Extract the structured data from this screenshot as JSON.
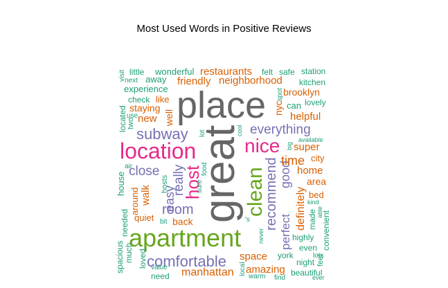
{
  "chart_data": {
    "type": "wordcloud",
    "title": "Most Used Words in Positive Reviews",
    "palette": {
      "c1": "#1b9e77",
      "c2": "#d95f02",
      "c3": "#7570b3",
      "c4": "#e7298a",
      "c5": "#66a61e",
      "c6": "#666666"
    },
    "words": [
      {
        "text": "great",
        "size_rank": 1,
        "color": "#666666"
      },
      {
        "text": "place",
        "size_rank": 2,
        "color": "#666666"
      },
      {
        "text": "apartment",
        "size_rank": 3,
        "color": "#66a61e"
      },
      {
        "text": "location",
        "size_rank": 4,
        "color": "#e7298a"
      },
      {
        "text": "clean",
        "size_rank": 5,
        "color": "#66a61e"
      },
      {
        "text": "nice",
        "size_rank": 6,
        "color": "#e7298a"
      },
      {
        "text": "host",
        "size_rank": 7,
        "color": "#e7298a"
      },
      {
        "text": "comfortable",
        "size_rank": 8,
        "color": "#7570b3"
      },
      {
        "text": "subway",
        "size_rank": 9,
        "color": "#7570b3"
      },
      {
        "text": "recommend",
        "size_rank": 10,
        "color": "#7570b3"
      },
      {
        "text": "room",
        "size_rank": 11,
        "color": "#7570b3"
      },
      {
        "text": "everything",
        "size_rank": 12,
        "color": "#7570b3"
      },
      {
        "text": "really",
        "size_rank": 13,
        "color": "#7570b3"
      },
      {
        "text": "close",
        "size_rank": 14,
        "color": "#7570b3"
      },
      {
        "text": "easy",
        "size_rank": 15,
        "color": "#7570b3"
      },
      {
        "text": "good",
        "size_rank": 16,
        "color": "#7570b3"
      },
      {
        "text": "perfect",
        "size_rank": 17,
        "color": "#7570b3"
      },
      {
        "text": "time",
        "size_rank": 18,
        "color": "#d95f02"
      },
      {
        "text": "definitely",
        "size_rank": 19,
        "color": "#d95f02"
      },
      {
        "text": "neighborhood",
        "size_rank": 20,
        "color": "#d95f02"
      },
      {
        "text": "restaurants",
        "size_rank": 21,
        "color": "#d95f02"
      },
      {
        "text": "manhattan",
        "size_rank": 22,
        "color": "#d95f02"
      },
      {
        "text": "super",
        "size_rank": 23,
        "color": "#d95f02"
      },
      {
        "text": "home",
        "size_rank": 24,
        "color": "#d95f02"
      },
      {
        "text": "helpful",
        "size_rank": 25,
        "color": "#d95f02"
      },
      {
        "text": "space",
        "size_rank": 26,
        "color": "#d95f02"
      },
      {
        "text": "amazing",
        "size_rank": 27,
        "color": "#d95f02"
      },
      {
        "text": "friendly",
        "size_rank": 28,
        "color": "#d95f02"
      },
      {
        "text": "brooklyn",
        "size_rank": 29,
        "color": "#d95f02"
      },
      {
        "text": "walk",
        "size_rank": 30,
        "color": "#d95f02"
      },
      {
        "text": "well",
        "size_rank": 31,
        "color": "#d95f02"
      },
      {
        "text": "new",
        "size_rank": 32,
        "color": "#d95f02"
      },
      {
        "text": "nyc",
        "size_rank": 33,
        "color": "#d95f02"
      },
      {
        "text": "area",
        "size_rank": 34,
        "color": "#d95f02"
      },
      {
        "text": "staying",
        "size_rank": 35,
        "color": "#d95f02"
      },
      {
        "text": "back",
        "size_rank": 36,
        "color": "#d95f02"
      },
      {
        "text": "quiet",
        "size_rank": 37,
        "color": "#d95f02"
      },
      {
        "text": "around",
        "size_rank": 38,
        "color": "#d95f02"
      },
      {
        "text": "city",
        "size_rank": 39,
        "color": "#d95f02"
      },
      {
        "text": "bed",
        "size_rank": 40,
        "color": "#d95f02"
      },
      {
        "text": "like",
        "size_rank": 41,
        "color": "#d95f02"
      },
      {
        "text": "wonderful",
        "size_rank": 42,
        "color": "#1b9e77"
      },
      {
        "text": "experience",
        "size_rank": 43,
        "color": "#1b9e77"
      },
      {
        "text": "away",
        "size_rank": 44,
        "color": "#1b9e77"
      },
      {
        "text": "little",
        "size_rank": 45,
        "color": "#1b9e77"
      },
      {
        "text": "felt",
        "size_rank": 46,
        "color": "#1b9e77"
      },
      {
        "text": "safe",
        "size_rank": 47,
        "color": "#1b9e77"
      },
      {
        "text": "station",
        "size_rank": 48,
        "color": "#1b9e77"
      },
      {
        "text": "kitchen",
        "size_rank": 49,
        "color": "#1b9e77"
      },
      {
        "text": "lovely",
        "size_rank": 50,
        "color": "#1b9e77"
      },
      {
        "text": "can",
        "size_rank": 51,
        "color": "#1b9e77"
      },
      {
        "text": "check",
        "size_rank": 52,
        "color": "#1b9e77"
      },
      {
        "text": "located",
        "size_rank": 53,
        "color": "#1b9e77"
      },
      {
        "text": "two",
        "size_rank": 54,
        "color": "#1b9e77"
      },
      {
        "text": "house",
        "size_rank": 55,
        "color": "#1b9e77"
      },
      {
        "text": "needed",
        "size_rank": 56,
        "color": "#1b9e77"
      },
      {
        "text": "much",
        "size_rank": 57,
        "color": "#1b9e77"
      },
      {
        "text": "spacious",
        "size_rank": 58,
        "color": "#1b9e77"
      },
      {
        "text": "loved",
        "size_rank": 59,
        "color": "#1b9e77"
      },
      {
        "text": "highly",
        "size_rank": 60,
        "color": "#1b9e77"
      },
      {
        "text": "even",
        "size_rank": 61,
        "color": "#1b9e77"
      },
      {
        "text": "night",
        "size_rank": 62,
        "color": "#1b9e77"
      },
      {
        "text": "york",
        "size_rank": 63,
        "color": "#1b9e77"
      },
      {
        "text": "beautiful",
        "size_rank": 64,
        "color": "#1b9e77"
      },
      {
        "text": "convenient",
        "size_rank": 65,
        "color": "#1b9e77"
      },
      {
        "text": "made",
        "size_rank": 66,
        "color": "#1b9e77"
      },
      {
        "text": "feel",
        "size_rank": 67,
        "color": "#1b9e77"
      },
      {
        "text": "need",
        "size_rank": 68,
        "color": "#1b9e77"
      },
      {
        "text": "hosts",
        "size_rank": 69,
        "color": "#1b9e77"
      },
      {
        "text": "sure",
        "size_rank": 70,
        "color": "#1b9e77"
      },
      {
        "text": "food",
        "size_rank": 71,
        "color": "#1b9e77"
      },
      {
        "text": "visit",
        "size_rank": 72,
        "color": "#1b9e77"
      },
      {
        "text": "next",
        "size_rank": 73,
        "color": "#1b9e77"
      },
      {
        "text": "use",
        "size_rank": 74,
        "color": "#1b9e77"
      },
      {
        "text": "air",
        "size_rank": 75,
        "color": "#1b9e77"
      },
      {
        "text": "lot",
        "size_rank": 76,
        "color": "#1b9e77"
      },
      {
        "text": "cool",
        "size_rank": 77,
        "color": "#1b9e77"
      },
      {
        "text": "spot",
        "size_rank": 78,
        "color": "#1b9e77"
      },
      {
        "text": "big",
        "size_rank": 79,
        "color": "#1b9e77"
      },
      {
        "text": "available",
        "size_rank": 80,
        "color": "#1b9e77"
      },
      {
        "text": "kind",
        "size_rank": 81,
        "color": "#1b9e77"
      },
      {
        "text": "able",
        "size_rank": 82,
        "color": "#1b9e77"
      },
      {
        "text": "bit",
        "size_rank": 83,
        "color": "#1b9e77"
      },
      {
        "text": "'s",
        "size_rank": 84,
        "color": "#1b9e77"
      },
      {
        "text": "never",
        "size_rank": 85,
        "color": "#1b9e77"
      },
      {
        "text": "local",
        "size_rank": 86,
        "color": "#1b9e77"
      },
      {
        "text": "value",
        "size_rank": 87,
        "color": "#1b9e77"
      },
      {
        "text": "warm",
        "size_rank": 88,
        "color": "#1b9e77"
      },
      {
        "text": "lots",
        "size_rank": 89,
        "color": "#1b9e77"
      },
      {
        "text": "find",
        "size_rank": 90,
        "color": "#1b9e77"
      },
      {
        "text": "ever",
        "size_rank": 91,
        "color": "#1b9e77"
      }
    ]
  }
}
